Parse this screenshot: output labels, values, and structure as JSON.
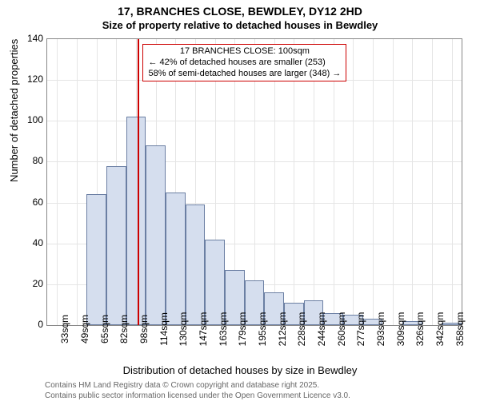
{
  "title": "17, BRANCHES CLOSE, BEWDLEY, DY12 2HD",
  "subtitle": "Size of property relative to detached houses in Bewdley",
  "chart": {
    "type": "histogram",
    "xlabel": "Distribution of detached houses by size in Bewdley",
    "ylabel": "Number of detached properties",
    "ylim": [
      0,
      140
    ],
    "ytick_step": 20,
    "yticks": [
      0,
      20,
      40,
      60,
      80,
      100,
      120,
      140
    ],
    "x_categories": [
      "33sqm",
      "49sqm",
      "65sqm",
      "82sqm",
      "98sqm",
      "114sqm",
      "130sqm",
      "147sqm",
      "163sqm",
      "179sqm",
      "195sqm",
      "212sqm",
      "228sqm",
      "244sqm",
      "260sqm",
      "277sqm",
      "293sqm",
      "309sqm",
      "326sqm",
      "342sqm",
      "358sqm"
    ],
    "values": [
      0,
      0,
      64,
      78,
      102,
      88,
      65,
      59,
      42,
      27,
      22,
      16,
      11,
      12,
      6,
      5,
      3,
      0,
      2,
      0,
      1
    ],
    "bar_fill": "#d5deee",
    "bar_stroke": "#6b7fa3",
    "grid_color": "#e5e5e5",
    "axis_color": "#888888",
    "bar_width_ratio": 1.0,
    "reference_line": {
      "position_index": 4.1,
      "color": "#cc0000",
      "width": 2
    },
    "annotation": {
      "border_color": "#cc0000",
      "lines": [
        "17 BRANCHES CLOSE: 100sqm",
        "← 42% of detached houses are smaller (253)",
        "58% of semi-detached houses are larger (348) →"
      ]
    }
  },
  "credits": [
    "Contains HM Land Registry data © Crown copyright and database right 2025.",
    "Contains public sector information licensed under the Open Government Licence v3.0."
  ]
}
